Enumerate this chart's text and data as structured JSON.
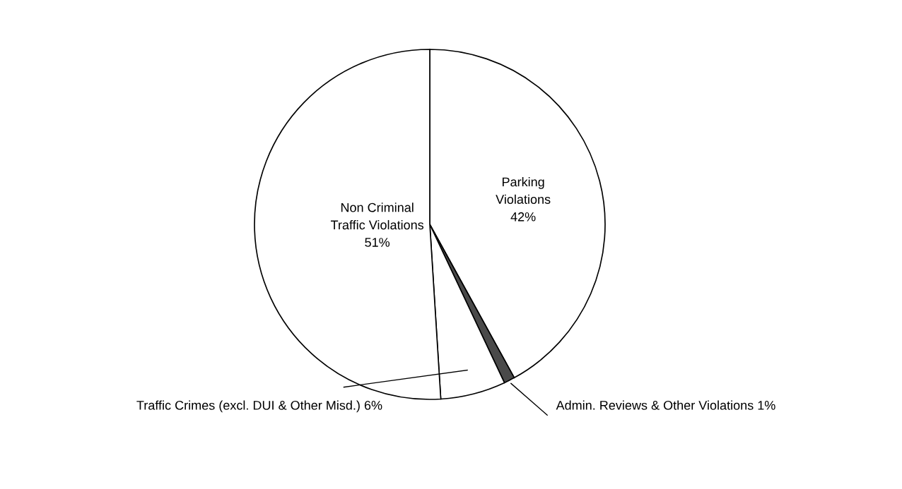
{
  "chart_data": {
    "type": "pie",
    "categories": [
      "Parking\nViolations",
      "Admin. Reviews & Other Violations",
      "Traffic Crimes (excl. DUI & Other Misd.)",
      "Non Criminal\nTraffic Violations"
    ],
    "values": [
      42,
      1,
      6,
      51
    ],
    "colors": [
      "#ffffff",
      "#4a4a4a",
      "#ffffff",
      "#ffffff"
    ],
    "value_labels": [
      "42%",
      "1%",
      "6%",
      "51%"
    ]
  }
}
